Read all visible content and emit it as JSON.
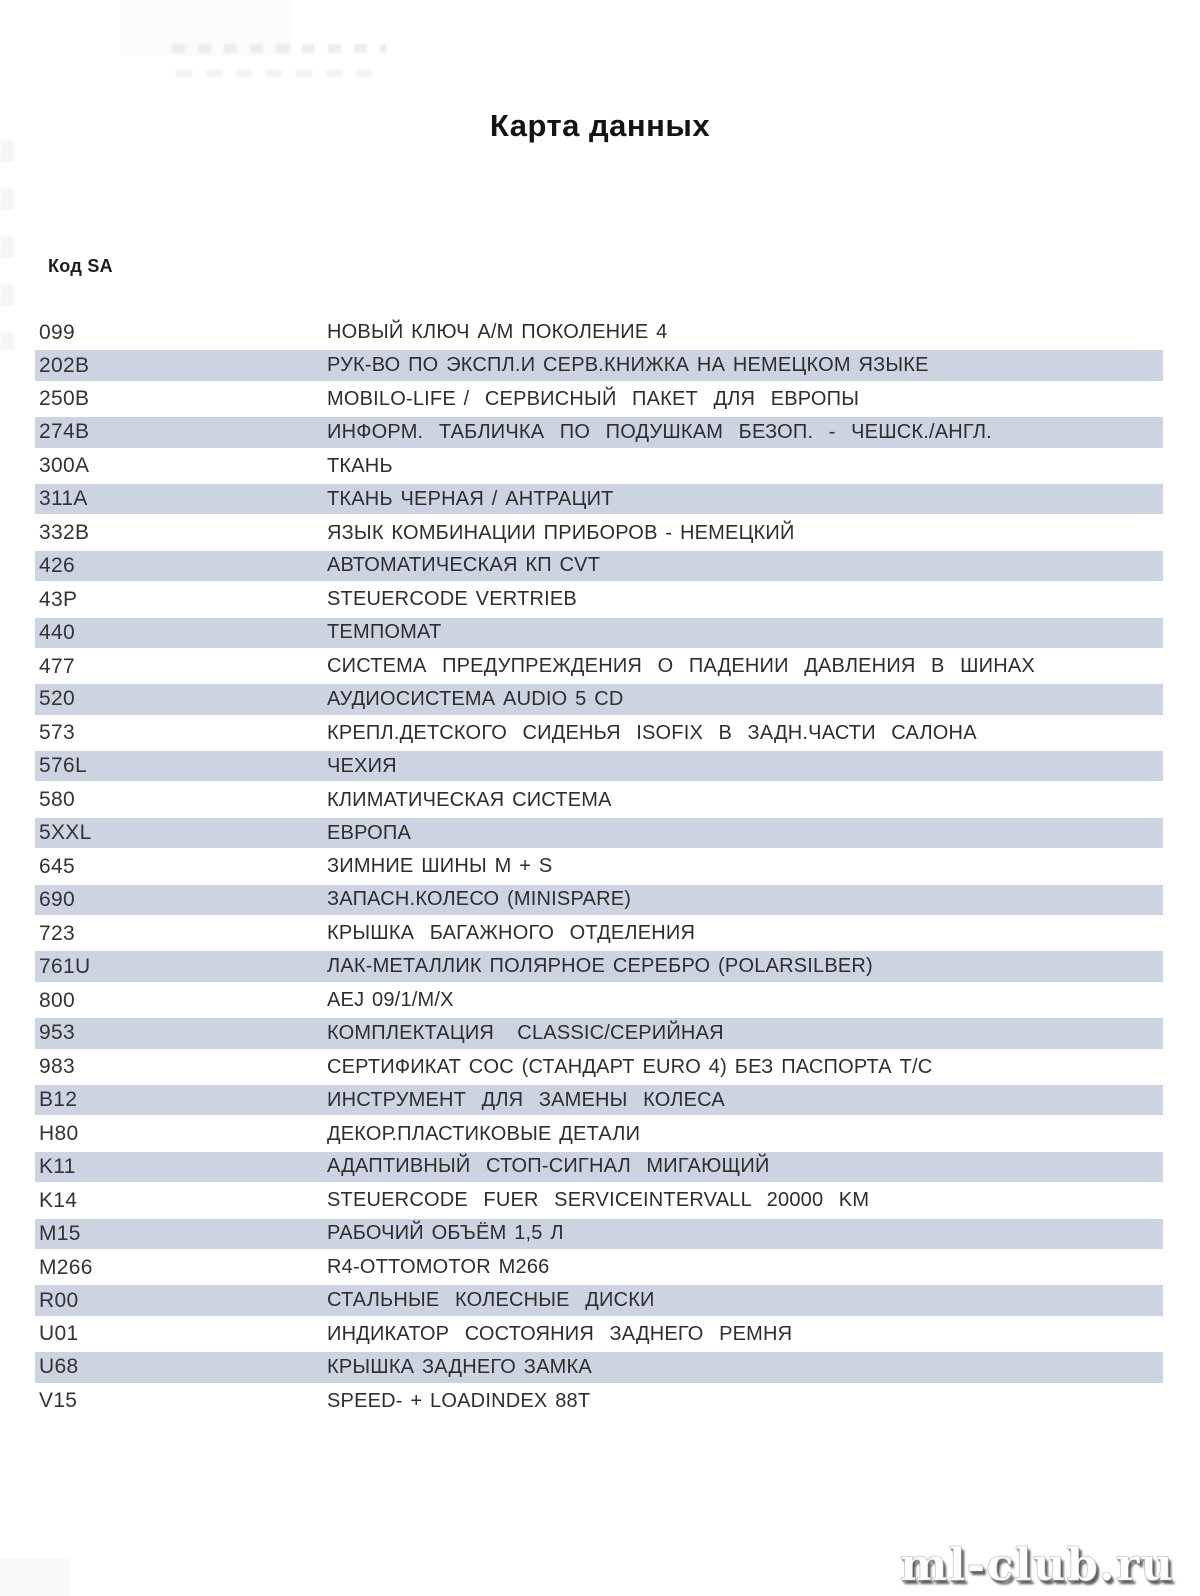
{
  "title": "Карта данных",
  "table": {
    "header": "Код SA",
    "rows": [
      {
        "code": "099",
        "desc": "НОВЫЙ КЛЮЧ А/М ПОКОЛЕНИЕ 4"
      },
      {
        "code": "202B",
        "desc": "РУК-ВО ПО ЭКСПЛ.И СЕРВ.КНИЖКА НА НЕМЕЦКОМ ЯЗЫКЕ"
      },
      {
        "code": "250B",
        "desc": "MOBILO-LIFE /  СЕРВИСНЫЙ  ПАКЕТ  ДЛЯ  ЕВРОПЫ"
      },
      {
        "code": "274B",
        "desc": "ИНФОРМ.  ТАБЛИЧКА  ПО  ПОДУШКАМ  БЕЗОП.  -  ЧЕШСК./АНГЛ."
      },
      {
        "code": "300A",
        "desc": "ТКАНЬ"
      },
      {
        "code": "311A",
        "desc": "ТКАНЬ ЧЕРНАЯ / АНТРАЦИТ"
      },
      {
        "code": "332B",
        "desc": "ЯЗЫК КОМБИНАЦИИ ПРИБОРОВ - НЕМЕЦКИЙ"
      },
      {
        "code": "426",
        "desc": "АВТОМАТИЧЕСКАЯ КП CVT"
      },
      {
        "code": "43P",
        "desc": "STEUERCODE VERTRIEB"
      },
      {
        "code": "440",
        "desc": "ТЕМПОМАТ"
      },
      {
        "code": "477",
        "desc": "СИСТЕМА  ПРЕДУПРЕЖДЕНИЯ  О  ПАДЕНИИ  ДАВЛЕНИЯ  В  ШИНАХ"
      },
      {
        "code": "520",
        "desc": "АУДИОСИСТЕМА AUDIO 5 CD"
      },
      {
        "code": "573",
        "desc": "КРЕПЛ.ДЕТСКОГО  СИДЕНЬЯ  ISOFIX  В  ЗАДН.ЧАСТИ  САЛОНА"
      },
      {
        "code": "576L",
        "desc": "ЧЕХИЯ"
      },
      {
        "code": "580",
        "desc": "КЛИМАТИЧЕСКАЯ СИСТЕМА"
      },
      {
        "code": "5XXL",
        "desc": "ЕВРОПА"
      },
      {
        "code": "645",
        "desc": "ЗИМНИЕ ШИНЫ M + S"
      },
      {
        "code": "690",
        "desc": "ЗАПАСН.КОЛЕСО (MINISPARE)"
      },
      {
        "code": "723",
        "desc": "КРЫШКА  БАГАЖНОГО  ОТДЕЛЕНИЯ"
      },
      {
        "code": "761U",
        "desc": "ЛАК-МЕТАЛЛИК ПОЛЯРНОЕ СЕРЕБРО (POLARSILBER)"
      },
      {
        "code": "800",
        "desc": "AEJ 09/1/M/X"
      },
      {
        "code": "953",
        "desc": "КОМПЛЕКТАЦИЯ   CLASSIC/СЕРИЙНАЯ"
      },
      {
        "code": "983",
        "desc": "СЕРТИФИКАТ COC (СТАНДАРТ EURO 4) БЕЗ ПАСПОРТА Т/С"
      },
      {
        "code": "B12",
        "desc": "ИНСТРУМЕНТ  ДЛЯ  ЗАМЕНЫ  КОЛЕСА"
      },
      {
        "code": "H80",
        "desc": "ДЕКОР.ПЛАСТИКОВЫЕ ДЕТАЛИ"
      },
      {
        "code": "K11",
        "desc": "АДАПТИВНЫЙ  СТОП-СИГНАЛ  МИГАЮЩИЙ"
      },
      {
        "code": "K14",
        "desc": "STEUERCODE  FUER  SERVICEINTERVALL  20000  KM"
      },
      {
        "code": "M15",
        "desc": "РАБОЧИЙ ОБЪЁМ 1,5 Л"
      },
      {
        "code": "M266",
        "desc": "R4-OTTOMOTOR M266"
      },
      {
        "code": "R00",
        "desc": "СТАЛЬНЫЕ  КОЛЕСНЫЕ  ДИСКИ"
      },
      {
        "code": "U01",
        "desc": "ИНДИКАТОР  СОСТОЯНИЯ  ЗАДНЕГО  РЕМНЯ"
      },
      {
        "code": "U68",
        "desc": "КРЫШКА ЗАДНЕГО ЗАМКА"
      },
      {
        "code": "V15",
        "desc": "SPEED- + LOADINDEX 88T"
      }
    ]
  },
  "watermark": "ml-club.ru",
  "colors": {
    "row_shade": "#cdd4e1",
    "page_bg": "#ffffff",
    "text": "#2e2e2e"
  }
}
